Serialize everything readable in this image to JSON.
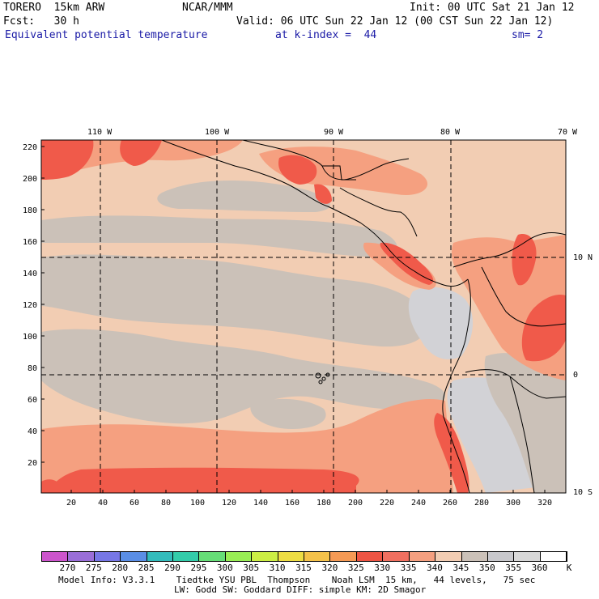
{
  "header": {
    "model": "TORERO  15km ARW",
    "org": "NCAR/MMM",
    "init": "Init: 00 UTC Sat 21 Jan 12",
    "fcst": "Fcst:   30 h",
    "valid": "Valid: 06 UTC Sun 22 Jan 12 (00 CST Sun 22 Jan 12)",
    "field": "Equivalent potential temperature",
    "level": "at k-index =  44",
    "smooth": "sm= 2"
  },
  "top_lon_labels": [
    "110 W",
    "100 W",
    "90 W",
    "80 W",
    "70 W"
  ],
  "right_lat_labels": [
    "10 N",
    "0",
    "10 S"
  ],
  "y_ticks": [
    "220",
    "200",
    "180",
    "160",
    "140",
    "120",
    "100",
    "80",
    "60",
    "40",
    "20"
  ],
  "x_ticks": [
    "20",
    "40",
    "60",
    "80",
    "100",
    "120",
    "140",
    "160",
    "180",
    "200",
    "220",
    "240",
    "260",
    "280",
    "300",
    "320"
  ],
  "colorbar": {
    "labels": [
      "270",
      "275",
      "280",
      "285",
      "290",
      "295",
      "300",
      "305",
      "310",
      "315",
      "320",
      "325",
      "330",
      "335",
      "340",
      "345",
      "350",
      "355",
      "360"
    ],
    "unit": "K",
    "colors": [
      "#cc55cc",
      "#9a6ed8",
      "#7777e6",
      "#5a8ee6",
      "#33bbbb",
      "#33ccaa",
      "#66dd77",
      "#99ee55",
      "#ccee44",
      "#eedd44",
      "#f5c24a",
      "#f59a55",
      "#ee5544",
      "#f07060",
      "#f5a080",
      "#f2cdb3",
      "#cbc1b8",
      "#c8c8cc",
      "#d8d8d8",
      "#ffffff"
    ]
  },
  "footer": {
    "line1": "Model Info: V3.3.1    Tiedtke YSU PBL  Thompson    Noah LSM  15 km,   44 levels,   75 sec",
    "line2": "LW: Godd SW: Goddard DIFF: simple KM: 2D Smagor"
  },
  "map_colors": {
    "base": "#f2cdb3",
    "gray": "#cbc1b8",
    "salmon": "#f5a080",
    "red": "#f05a4a",
    "lightgray": "#d2d2d6"
  }
}
